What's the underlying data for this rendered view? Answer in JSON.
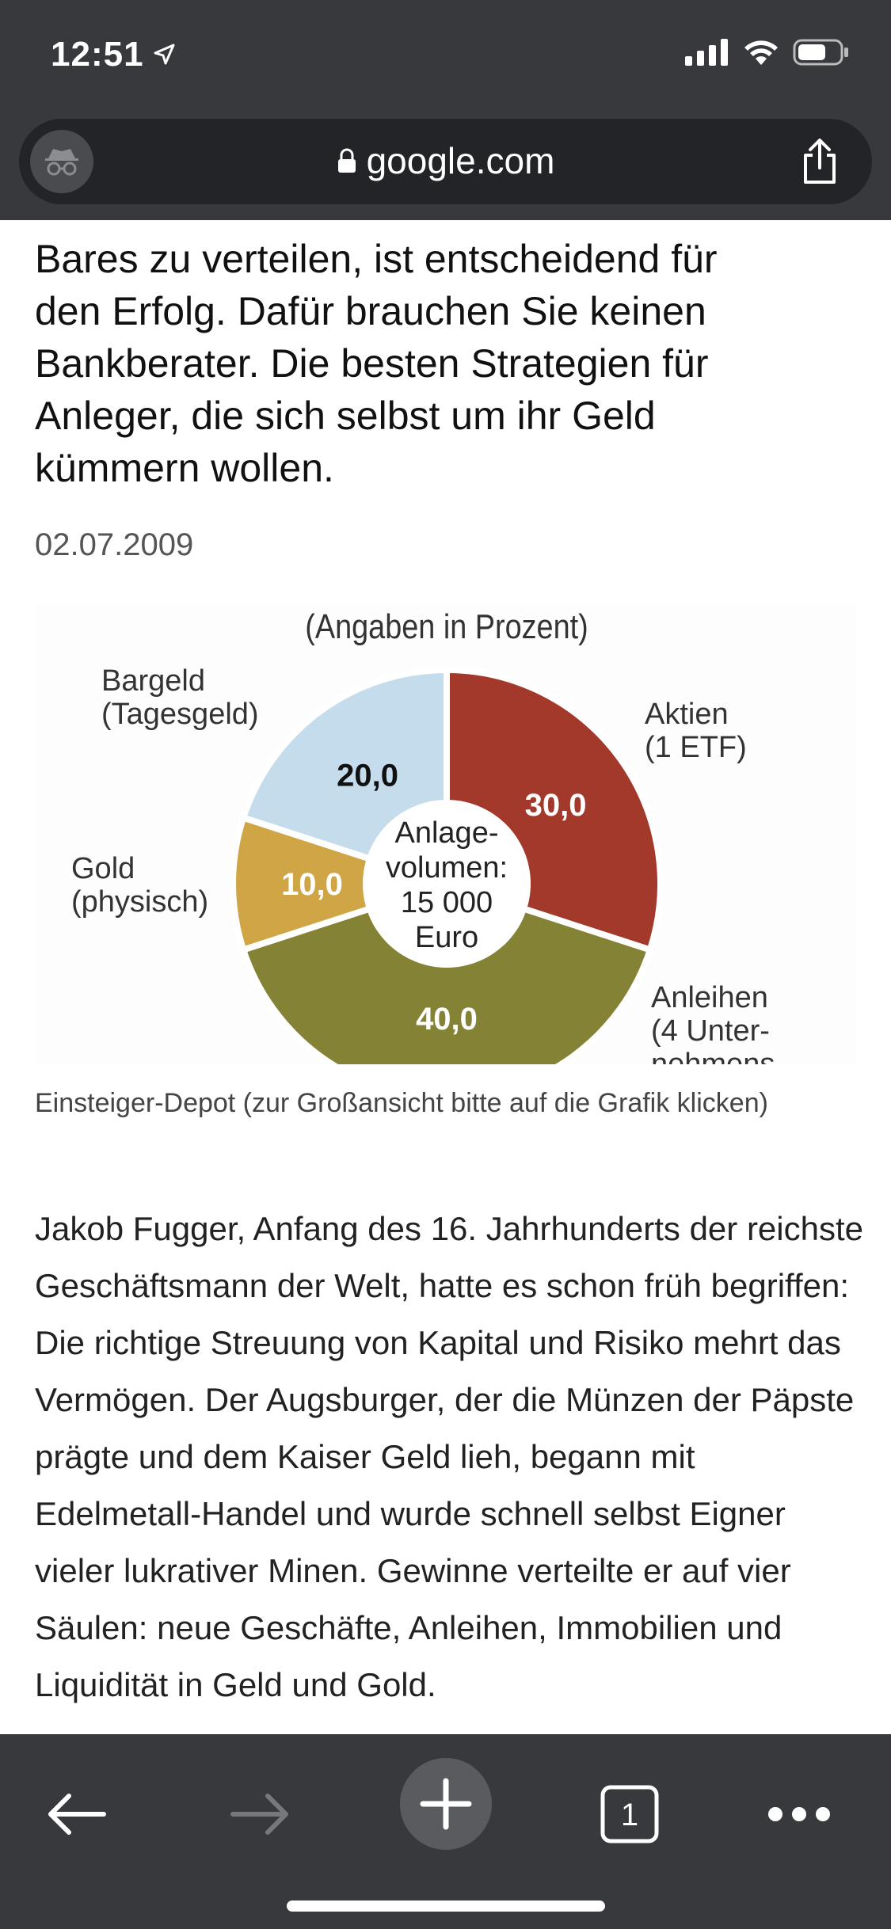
{
  "status_bar": {
    "time": "12:51"
  },
  "browser": {
    "url": "google.com"
  },
  "article": {
    "lead_lines": [
      "Bares zu verteilen, ist entscheidend für",
      "den Erfolg. Dafür brauchen Sie keinen",
      "Bankberater. Die besten Strategien für",
      "Anleger, die sich selbst um ihr Geld",
      "kümmern wollen."
    ],
    "date": "02.07.2009",
    "caption": "Einsteiger-Depot (zur Großansicht bitte auf die Grafik klicken)",
    "body": "Jakob Fugger, Anfang des 16. Jahrhunderts der reichste Geschäftsmann der Welt, hatte es schon früh begriffen: Die richtige Streuung von Kapital und Risiko mehrt das Vermögen. Der Augsburger, der die Münzen der Päpste prägte und dem Kaiser Geld lieh, begann mit Edelmetall-Handel und wurde schnell selbst Eigner vieler lukrativer Minen. Gewinne verteilte er auf vier Säulen: neue Geschäfte, Anleihen, Immobilien und Liquidität in Geld und Gold."
  },
  "chart_data": {
    "type": "pie",
    "title": "(Angaben in Prozent)",
    "center_label": [
      "Anlage-",
      "volumen:",
      "15 000",
      "Euro"
    ],
    "slices": [
      {
        "label": [
          "Aktien",
          "(1 ETF)"
        ],
        "value": 30.0,
        "display": "30,0",
        "color": "#a3392b",
        "text_color": "#ffffff"
      },
      {
        "label": [
          "Anleihen",
          "(4 Unter-",
          "nehmens-"
        ],
        "value": 40.0,
        "display": "40,0",
        "color": "#848335",
        "text_color": "#ffffff"
      },
      {
        "label": [
          "Gold",
          "(physisch)"
        ],
        "value": 10.0,
        "display": "10,0",
        "color": "#cfa546",
        "text_color": "#ffffff"
      },
      {
        "label": [
          "Bargeld",
          "(Tagesgeld)"
        ],
        "value": 20.0,
        "display": "20,0",
        "color": "#c5dcec",
        "text_color": "#111111"
      }
    ]
  }
}
